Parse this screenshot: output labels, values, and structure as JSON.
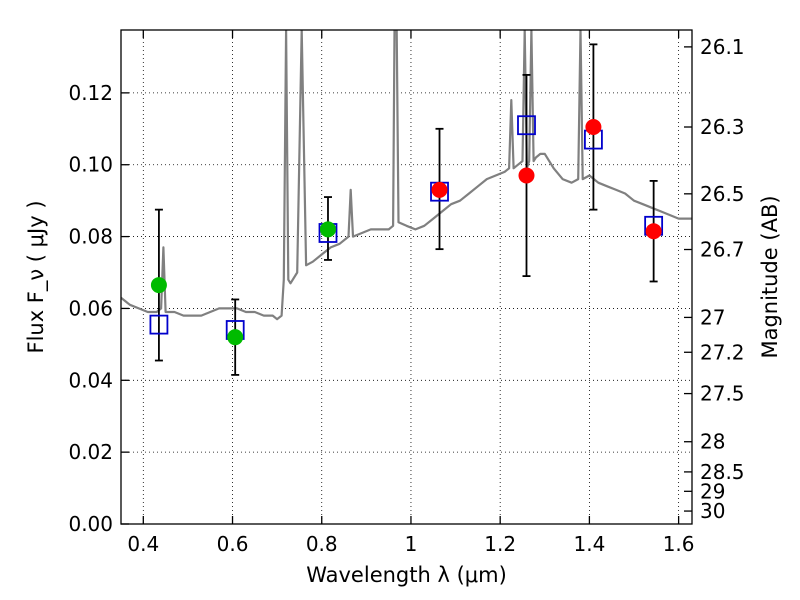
{
  "chart_data": {
    "type": "scatter",
    "xlabel": "Wavelength  λ (μm)",
    "ylabel": "Flux  F_ν  ( μJy )",
    "y2label": "Magnitude (AB)",
    "xlim": [
      0.35,
      1.63
    ],
    "ylim": [
      0.0,
      0.1375
    ],
    "x_ticks": [
      0.4,
      0.6,
      0.8,
      1.0,
      1.2,
      1.4,
      1.6
    ],
    "x_tick_labels": [
      "0.4",
      "0.6",
      "0.8",
      "1",
      "1.2",
      "1.4",
      "1.6"
    ],
    "y_ticks": [
      0.0,
      0.02,
      0.04,
      0.06,
      0.08,
      0.1,
      0.12
    ],
    "y_tick_labels": [
      "0.00",
      "0.02",
      "0.04",
      "0.06",
      "0.08",
      "0.10",
      "0.12"
    ],
    "y2_ticks": [
      {
        "label": "26.1",
        "flux": 0.1328
      },
      {
        "label": "26.3",
        "flux": 0.1105
      },
      {
        "label": "26.5",
        "flux": 0.0919
      },
      {
        "label": "26.7",
        "flux": 0.0764
      },
      {
        "label": "27",
        "flux": 0.0575
      },
      {
        "label": "27.2",
        "flux": 0.0478
      },
      {
        "label": "27.5",
        "flux": 0.0363
      },
      {
        "label": "28",
        "flux": 0.0229
      },
      {
        "label": "28.5",
        "flux": 0.0145
      },
      {
        "label": "29",
        "flux": 0.0091
      },
      {
        "label": "30",
        "flux": 0.0036
      }
    ],
    "grid": true,
    "colors": {
      "model": "#808080",
      "model_photometry": "#0000cc",
      "observed_optical": "#00bb00",
      "observed_nir": "#ff0000",
      "errorbar": "#000000"
    },
    "model_spectrum": [
      [
        0.35,
        0.063
      ],
      [
        0.37,
        0.061
      ],
      [
        0.39,
        0.06
      ],
      [
        0.41,
        0.059
      ],
      [
        0.43,
        0.059
      ],
      [
        0.44,
        0.06
      ],
      [
        0.445,
        0.077
      ],
      [
        0.45,
        0.059
      ],
      [
        0.47,
        0.059
      ],
      [
        0.49,
        0.058
      ],
      [
        0.51,
        0.058
      ],
      [
        0.53,
        0.058
      ],
      [
        0.55,
        0.059
      ],
      [
        0.57,
        0.06
      ],
      [
        0.59,
        0.06
      ],
      [
        0.61,
        0.06
      ],
      [
        0.63,
        0.059
      ],
      [
        0.65,
        0.059
      ],
      [
        0.67,
        0.058
      ],
      [
        0.69,
        0.058
      ],
      [
        0.7,
        0.057
      ],
      [
        0.71,
        0.058
      ],
      [
        0.715,
        0.068
      ],
      [
        0.72,
        0.1375
      ],
      [
        0.725,
        0.068
      ],
      [
        0.73,
        0.067
      ],
      [
        0.745,
        0.07
      ],
      [
        0.755,
        0.1375
      ],
      [
        0.765,
        0.072
      ],
      [
        0.78,
        0.073
      ],
      [
        0.8,
        0.075
      ],
      [
        0.82,
        0.077
      ],
      [
        0.84,
        0.078
      ],
      [
        0.86,
        0.08
      ],
      [
        0.865,
        0.093
      ],
      [
        0.87,
        0.08
      ],
      [
        0.89,
        0.081
      ],
      [
        0.91,
        0.082
      ],
      [
        0.93,
        0.082
      ],
      [
        0.95,
        0.082
      ],
      [
        0.96,
        0.083
      ],
      [
        0.963,
        0.1375
      ],
      [
        0.968,
        0.1375
      ],
      [
        0.972,
        0.084
      ],
      [
        0.99,
        0.083
      ],
      [
        1.01,
        0.082
      ],
      [
        1.03,
        0.083
      ],
      [
        1.05,
        0.085
      ],
      [
        1.07,
        0.087
      ],
      [
        1.09,
        0.089
      ],
      [
        1.11,
        0.09
      ],
      [
        1.13,
        0.092
      ],
      [
        1.15,
        0.094
      ],
      [
        1.17,
        0.096
      ],
      [
        1.19,
        0.097
      ],
      [
        1.21,
        0.098
      ],
      [
        1.22,
        0.099
      ],
      [
        1.225,
        0.118
      ],
      [
        1.23,
        0.099
      ],
      [
        1.24,
        0.1
      ],
      [
        1.25,
        0.101
      ],
      [
        1.255,
        0.1375
      ],
      [
        1.26,
        0.099
      ],
      [
        1.265,
        0.101
      ],
      [
        1.27,
        0.1375
      ],
      [
        1.275,
        0.101
      ],
      [
        1.28,
        0.102
      ],
      [
        1.29,
        0.103
      ],
      [
        1.3,
        0.103
      ],
      [
        1.32,
        0.099
      ],
      [
        1.34,
        0.096
      ],
      [
        1.36,
        0.095
      ],
      [
        1.375,
        0.096
      ],
      [
        1.38,
        0.1375
      ],
      [
        1.385,
        0.096
      ],
      [
        1.4,
        0.097
      ],
      [
        1.42,
        0.095
      ],
      [
        1.44,
        0.094
      ],
      [
        1.46,
        0.093
      ],
      [
        1.48,
        0.092
      ],
      [
        1.5,
        0.09
      ],
      [
        1.52,
        0.089
      ],
      [
        1.54,
        0.088
      ],
      [
        1.56,
        0.087
      ],
      [
        1.58,
        0.086
      ],
      [
        1.6,
        0.085
      ],
      [
        1.63,
        0.085
      ]
    ],
    "model_photometry": [
      {
        "x": 0.435,
        "y": 0.0555
      },
      {
        "x": 0.606,
        "y": 0.054
      },
      {
        "x": 0.814,
        "y": 0.081
      },
      {
        "x": 1.064,
        "y": 0.0925
      },
      {
        "x": 1.259,
        "y": 0.111
      },
      {
        "x": 1.409,
        "y": 0.107
      },
      {
        "x": 1.544,
        "y": 0.083
      }
    ],
    "observed_photometry": [
      {
        "x": 0.435,
        "y": 0.0665,
        "yerr_low": 0.0455,
        "yerr_high": 0.0875,
        "color": "observed_optical"
      },
      {
        "x": 0.606,
        "y": 0.052,
        "yerr_low": 0.0415,
        "yerr_high": 0.0625,
        "color": "observed_optical"
      },
      {
        "x": 0.814,
        "y": 0.082,
        "yerr_low": 0.0735,
        "yerr_high": 0.091,
        "color": "observed_optical"
      },
      {
        "x": 1.064,
        "y": 0.093,
        "yerr_low": 0.0765,
        "yerr_high": 0.11,
        "color": "observed_nir"
      },
      {
        "x": 1.259,
        "y": 0.097,
        "yerr_low": 0.069,
        "yerr_high": 0.125,
        "color": "observed_nir"
      },
      {
        "x": 1.409,
        "y": 0.1105,
        "yerr_low": 0.0875,
        "yerr_high": 0.1335,
        "color": "observed_nir"
      },
      {
        "x": 1.544,
        "y": 0.0815,
        "yerr_low": 0.0675,
        "yerr_high": 0.0955,
        "color": "observed_nir"
      }
    ]
  }
}
